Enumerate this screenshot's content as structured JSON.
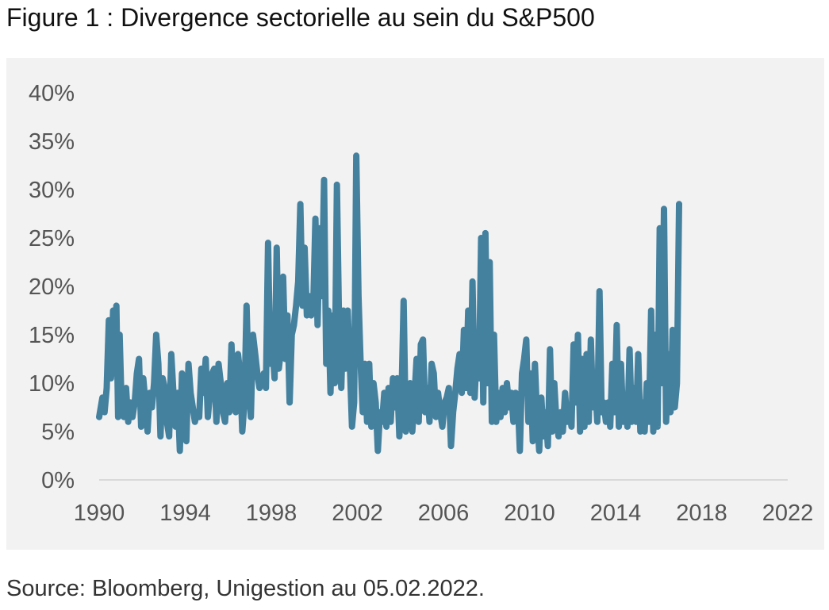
{
  "figure": {
    "title": "Figure 1 : Divergence sectorielle au sein du S&P500",
    "source": "Source: Bloomberg, Unigestion au 05.02.2022."
  },
  "colors": {
    "line": "#44819f",
    "background": "#f2f2f2",
    "axis": "#d9d9d9",
    "tick_text": "#555555"
  },
  "chart_data": {
    "type": "line",
    "title": "Figure 1 : Divergence sectorielle au sein du S&P500",
    "xlabel": "",
    "ylabel": "",
    "xlim": [
      1990,
      2022
    ],
    "ylim": [
      0,
      40
    ],
    "y_format": "percent",
    "grid": false,
    "legend": "none",
    "x_ticks": [
      "1990",
      "1994",
      "1998",
      "2002",
      "2006",
      "2010",
      "2014",
      "2018",
      "2022"
    ],
    "y_ticks": [
      "0%",
      "5%",
      "10%",
      "15%",
      "20%",
      "25%",
      "30%",
      "35%",
      "40%"
    ],
    "series": [
      {
        "name": "",
        "color": "#44819f",
        "points": [
          [
            1990.0,
            6.5
          ],
          [
            1990.15,
            8.5
          ],
          [
            1990.25,
            7
          ],
          [
            1990.35,
            9.5
          ],
          [
            1990.45,
            16.5
          ],
          [
            1990.55,
            10.5
          ],
          [
            1990.65,
            17.5
          ],
          [
            1990.72,
            11
          ],
          [
            1990.8,
            18
          ],
          [
            1990.88,
            6.5
          ],
          [
            1990.95,
            15
          ],
          [
            1991.05,
            7
          ],
          [
            1991.15,
            6.5
          ],
          [
            1991.25,
            9.5
          ],
          [
            1991.35,
            6
          ],
          [
            1991.45,
            8
          ],
          [
            1991.55,
            6.5
          ],
          [
            1991.65,
            8
          ],
          [
            1991.75,
            11
          ],
          [
            1991.85,
            12.5
          ],
          [
            1991.95,
            5.5
          ],
          [
            1992.05,
            10.5
          ],
          [
            1992.15,
            8
          ],
          [
            1992.25,
            5
          ],
          [
            1992.35,
            9
          ],
          [
            1992.45,
            7.5
          ],
          [
            1992.55,
            10
          ],
          [
            1992.65,
            15
          ],
          [
            1992.75,
            12
          ],
          [
            1992.85,
            4.5
          ],
          [
            1992.95,
            10.5
          ],
          [
            1993.05,
            9.5
          ],
          [
            1993.15,
            6
          ],
          [
            1993.25,
            4.5
          ],
          [
            1993.35,
            13
          ],
          [
            1993.45,
            9
          ],
          [
            1993.55,
            5.5
          ],
          [
            1993.65,
            9
          ],
          [
            1993.75,
            3
          ],
          [
            1993.85,
            11
          ],
          [
            1993.95,
            8
          ],
          [
            1994.05,
            4
          ],
          [
            1994.15,
            12
          ],
          [
            1994.25,
            9
          ],
          [
            1994.35,
            7.5
          ],
          [
            1994.45,
            6
          ],
          [
            1994.55,
            7
          ],
          [
            1994.65,
            6.5
          ],
          [
            1994.75,
            11.5
          ],
          [
            1994.85,
            9
          ],
          [
            1994.95,
            12.5
          ],
          [
            1995.05,
            6.5
          ],
          [
            1995.15,
            9
          ],
          [
            1995.25,
            11
          ],
          [
            1995.35,
            11.5
          ],
          [
            1995.45,
            6
          ],
          [
            1995.55,
            12
          ],
          [
            1995.65,
            10
          ],
          [
            1995.75,
            7
          ],
          [
            1995.85,
            6
          ],
          [
            1995.95,
            10
          ],
          [
            1996.05,
            7
          ],
          [
            1996.15,
            14
          ],
          [
            1996.25,
            8
          ],
          [
            1996.35,
            7
          ],
          [
            1996.45,
            13
          ],
          [
            1996.55,
            11
          ],
          [
            1996.65,
            5
          ],
          [
            1996.75,
            8
          ],
          [
            1996.85,
            18
          ],
          [
            1996.95,
            10
          ],
          [
            1997.05,
            6.5
          ],
          [
            1997.15,
            15
          ],
          [
            1997.25,
            13
          ],
          [
            1997.35,
            11
          ],
          [
            1997.45,
            9.5
          ],
          [
            1997.55,
            10
          ],
          [
            1997.65,
            11
          ],
          [
            1997.75,
            9.5
          ],
          [
            1997.85,
            24.5
          ],
          [
            1997.95,
            12
          ],
          [
            1998.05,
            14
          ],
          [
            1998.15,
            10.5
          ],
          [
            1998.25,
            24
          ],
          [
            1998.35,
            11.5
          ],
          [
            1998.45,
            13.5
          ],
          [
            1998.55,
            21
          ],
          [
            1998.65,
            12.5
          ],
          [
            1998.75,
            17
          ],
          [
            1998.85,
            8
          ],
          [
            1998.95,
            15
          ],
          [
            1999.05,
            16
          ],
          [
            1999.15,
            18
          ],
          [
            1999.25,
            20.5
          ],
          [
            1999.35,
            28.5
          ],
          [
            1999.45,
            18
          ],
          [
            1999.55,
            24
          ],
          [
            1999.65,
            17
          ],
          [
            1999.75,
            19
          ],
          [
            1999.85,
            17
          ],
          [
            1999.95,
            18
          ],
          [
            2000.05,
            27
          ],
          [
            2000.15,
            16
          ],
          [
            2000.25,
            26
          ],
          [
            2000.35,
            19
          ],
          [
            2000.45,
            31
          ],
          [
            2000.55,
            12
          ],
          [
            2000.65,
            17.5
          ],
          [
            2000.75,
            9
          ],
          [
            2000.85,
            17
          ],
          [
            2000.95,
            10
          ],
          [
            2001.05,
            30.5
          ],
          [
            2001.15,
            16
          ],
          [
            2001.25,
            9.5
          ],
          [
            2001.35,
            17.5
          ],
          [
            2001.45,
            11.5
          ],
          [
            2001.55,
            17.5
          ],
          [
            2001.65,
            12
          ],
          [
            2001.75,
            5.5
          ],
          [
            2001.85,
            8
          ],
          [
            2001.95,
            33.5
          ],
          [
            2002.05,
            19
          ],
          [
            2002.15,
            12
          ],
          [
            2002.25,
            7
          ],
          [
            2002.35,
            12
          ],
          [
            2002.45,
            6
          ],
          [
            2002.55,
            12
          ],
          [
            2002.65,
            5.5
          ],
          [
            2002.75,
            10
          ],
          [
            2002.85,
            8
          ],
          [
            2002.95,
            3
          ],
          [
            2003.05,
            7
          ],
          [
            2003.15,
            6
          ],
          [
            2003.25,
            9
          ],
          [
            2003.35,
            5.5
          ],
          [
            2003.45,
            9.5
          ],
          [
            2003.55,
            6
          ],
          [
            2003.65,
            10.5
          ],
          [
            2003.75,
            7.5
          ],
          [
            2003.85,
            10.5
          ],
          [
            2003.95,
            4.5
          ],
          [
            2004.05,
            8.5
          ],
          [
            2004.15,
            18.5
          ],
          [
            2004.25,
            5
          ],
          [
            2004.35,
            7
          ],
          [
            2004.45,
            10
          ],
          [
            2004.55,
            5
          ],
          [
            2004.65,
            8.5
          ],
          [
            2004.75,
            12.5
          ],
          [
            2004.85,
            6
          ],
          [
            2004.95,
            14
          ],
          [
            2005.05,
            14.5
          ],
          [
            2005.15,
            7
          ],
          [
            2005.25,
            9.5
          ],
          [
            2005.35,
            6
          ],
          [
            2005.45,
            12
          ],
          [
            2005.55,
            11
          ],
          [
            2005.65,
            6.5
          ],
          [
            2005.75,
            9
          ],
          [
            2005.85,
            7
          ],
          [
            2005.95,
            5.5
          ],
          [
            2006.05,
            8
          ],
          [
            2006.15,
            8.5
          ],
          [
            2006.25,
            9.5
          ],
          [
            2006.35,
            3.5
          ],
          [
            2006.45,
            7
          ],
          [
            2006.55,
            9
          ],
          [
            2006.65,
            11.5
          ],
          [
            2006.75,
            13
          ],
          [
            2006.85,
            9
          ],
          [
            2006.95,
            15.5
          ],
          [
            2007.05,
            9.5
          ],
          [
            2007.15,
            17.5
          ],
          [
            2007.25,
            9
          ],
          [
            2007.35,
            20.5
          ],
          [
            2007.45,
            8.5
          ],
          [
            2007.55,
            13.5
          ],
          [
            2007.65,
            10.5
          ],
          [
            2007.75,
            25
          ],
          [
            2007.85,
            8
          ],
          [
            2007.95,
            25.5
          ],
          [
            2008.05,
            10
          ],
          [
            2008.15,
            22.5
          ],
          [
            2008.25,
            6
          ],
          [
            2008.35,
            15
          ],
          [
            2008.45,
            6
          ],
          [
            2008.55,
            9
          ],
          [
            2008.65,
            6.5
          ],
          [
            2008.75,
            9.5
          ],
          [
            2008.85,
            7
          ],
          [
            2008.95,
            10
          ],
          [
            2009.05,
            7.5
          ],
          [
            2009.15,
            9
          ],
          [
            2009.25,
            6
          ],
          [
            2009.35,
            9
          ],
          [
            2009.45,
            8.5
          ],
          [
            2009.55,
            3
          ],
          [
            2009.65,
            11
          ],
          [
            2009.75,
            12.5
          ],
          [
            2009.85,
            14.5
          ],
          [
            2009.95,
            6
          ],
          [
            2010.05,
            11
          ],
          [
            2010.15,
            4
          ],
          [
            2010.25,
            12
          ],
          [
            2010.35,
            6.5
          ],
          [
            2010.45,
            3
          ],
          [
            2010.55,
            8.5
          ],
          [
            2010.65,
            4.5
          ],
          [
            2010.75,
            7
          ],
          [
            2010.85,
            3.5
          ],
          [
            2010.95,
            13.5
          ],
          [
            2011.05,
            5
          ],
          [
            2011.15,
            10
          ],
          [
            2011.25,
            6
          ],
          [
            2011.35,
            4.5
          ],
          [
            2011.45,
            7
          ],
          [
            2011.55,
            5
          ],
          [
            2011.65,
            9
          ],
          [
            2011.75,
            6
          ],
          [
            2011.85,
            7.5
          ],
          [
            2011.95,
            5.5
          ],
          [
            2012.05,
            14
          ],
          [
            2012.15,
            8
          ],
          [
            2012.25,
            15
          ],
          [
            2012.35,
            5
          ],
          [
            2012.45,
            12.5
          ],
          [
            2012.55,
            5.5
          ],
          [
            2012.65,
            13
          ],
          [
            2012.75,
            6
          ],
          [
            2012.85,
            14.5
          ],
          [
            2012.95,
            7.5
          ],
          [
            2013.05,
            10
          ],
          [
            2013.15,
            6
          ],
          [
            2013.25,
            19.5
          ],
          [
            2013.35,
            7
          ],
          [
            2013.45,
            8
          ],
          [
            2013.55,
            6
          ],
          [
            2013.65,
            8
          ],
          [
            2013.75,
            5.5
          ],
          [
            2013.85,
            12
          ],
          [
            2013.95,
            7
          ],
          [
            2014.05,
            16
          ],
          [
            2014.15,
            5.5
          ],
          [
            2014.25,
            12
          ],
          [
            2014.35,
            6
          ],
          [
            2014.45,
            8
          ],
          [
            2014.55,
            5.5
          ],
          [
            2014.65,
            13.5
          ],
          [
            2014.75,
            6
          ],
          [
            2014.85,
            9.5
          ],
          [
            2014.95,
            6
          ],
          [
            2015.05,
            13
          ],
          [
            2015.15,
            5
          ],
          [
            2015.25,
            8
          ],
          [
            2015.35,
            5
          ],
          [
            2015.45,
            10
          ],
          [
            2015.55,
            6
          ],
          [
            2015.65,
            17.5
          ],
          [
            2015.75,
            5
          ],
          [
            2015.85,
            15
          ],
          [
            2015.95,
            5.5
          ],
          [
            2016.05,
            26
          ],
          [
            2016.15,
            10
          ],
          [
            2016.25,
            28
          ],
          [
            2016.35,
            6
          ],
          [
            2016.45,
            13
          ],
          [
            2016.55,
            7
          ],
          [
            2016.65,
            15.5
          ],
          [
            2016.75,
            7.5
          ],
          [
            2016.85,
            10
          ],
          [
            2016.95,
            28.5
          ]
        ]
      }
    ]
  }
}
